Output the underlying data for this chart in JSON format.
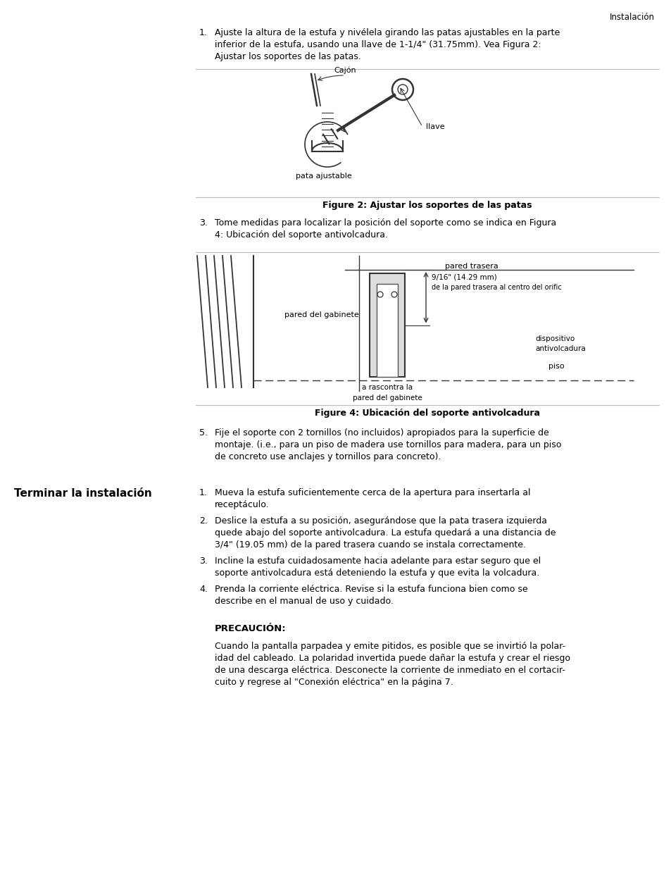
{
  "bg_color": "#ffffff",
  "text_color": "#000000",
  "page_header": "Instalación",
  "step1_text_line1": "Ajuste la altura de la estufa y nivélela girando las patas ajustables en la parte",
  "step1_text_line2": "inferior de la estufa, usando una llave de 1-1/4\" (31.75mm). Vea Figura 2:",
  "step1_text_line3": "Ajustar los soportes de las patas.",
  "fig2_caption": "Figure 2: Ajustar los soportes de las patas",
  "step3_text_line1": "Tome medidas para localizar la posición del soporte como se indica en Figura",
  "step3_text_line2": "4: Ubicación del soporte antivolcadura.",
  "fig4_caption": "Figure 4: Ubicación del soporte antivolcadura",
  "step5_text_line1": "Fije el soporte con 2 tornillos (no incluidos) apropiados para la superficie de",
  "step5_text_line2": "montaje. (i.e., para un piso de madera use tornillos para madera, para un piso",
  "step5_text_line3": "de concreto use anclajes y tornillos para concreto).",
  "section_header": "Terminar la instalación",
  "finish1_line1": "Mueva la estufa suficientemente cerca de la apertura para insertarla al",
  "finish1_line2": "receptáculo.",
  "finish2_line1": "Deslice la estufa a su posición, asegurándose que la pata trasera izquierda",
  "finish2_line2": "quede abajo del soporte antivolcadura. La estufa quedará a una distancia de",
  "finish2_line3": "3/4\" (19.05 mm) de la pared trasera cuando se instala correctamente.",
  "finish3_line1": "Incline la estufa cuidadosamente hacia adelante para estar seguro que el",
  "finish3_line2": "soporte antivolcadura está deteniendo la estufa y que evita la volcadura.",
  "finish4_line1": "Prenda la corriente eléctrica. Revise si la estufa funciona bien como se",
  "finish4_line2": "describe en el manual de uso y cuidado.",
  "precaution_header": "PRECAUCIÓN:",
  "precaution_line1": "Cuando la pantalla parpadea y emite pitidos, es posible que se invirtió la polar-",
  "precaution_line2": "idad del cableado. La polaridad invertida puede dañar la estufa y crear el riesgo",
  "precaution_line3": "de una descarga eléctrica. Desconecte la corriente de inmediato en el cortacir-",
  "precaution_line4": "cuito y regrese al \"Conexión eléctrica\" en la página 7."
}
